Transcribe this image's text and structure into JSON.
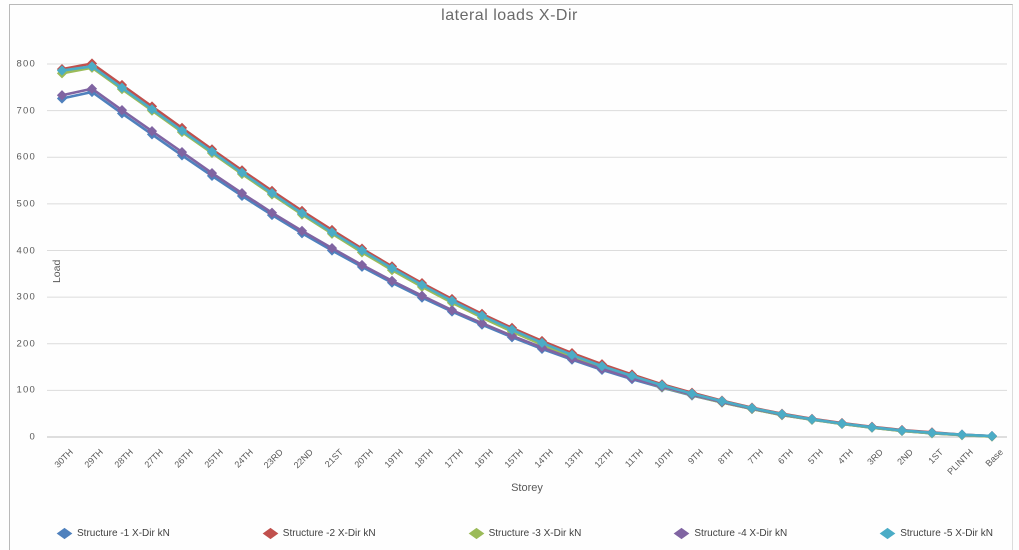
{
  "chart_data": {
    "type": "line",
    "title": "lateral loads X-Dir",
    "xlabel": "Storey",
    "ylabel": "Load",
    "grid": true,
    "legend_position": "bottom",
    "marker": "diamond",
    "x_categories": [
      "30TH",
      "29TH",
      "28TH",
      "27TH",
      "26TH",
      "25TH",
      "24TH",
      "23RD",
      "22ND",
      "21ST",
      "20TH",
      "19TH",
      "18TH",
      "17TH",
      "16TH",
      "15TH",
      "14TH",
      "13TH",
      "12TH",
      "11TH",
      "10TH",
      "9TH",
      "8TH",
      "7TH",
      "6TH",
      "5TH",
      "4TH",
      "3RD",
      "2ND",
      "1ST",
      "PLINTH",
      "Base"
    ],
    "y_axis": {
      "min": 0,
      "max": 800,
      "step": 100,
      "ticks": [
        0,
        100,
        200,
        300,
        400,
        500,
        600,
        700,
        800
      ]
    },
    "series": [
      {
        "name": "Structure -1 X-Dir kN",
        "color": "#4F81BD",
        "values": [
          726,
          740,
          694,
          649,
          604,
          560,
          517,
          476,
          437,
          400,
          365,
          331,
          299,
          269,
          241,
          214,
          189,
          166,
          144,
          124,
          106,
          89,
          74,
          60,
          47,
          37,
          28,
          20,
          13,
          8,
          4,
          1
        ]
      },
      {
        "name": "Structure -2 X-Dir kN",
        "color": "#C0504D",
        "values": [
          789,
          801,
          755,
          709,
          663,
          617,
          572,
          528,
          485,
          444,
          404,
          366,
          330,
          296,
          264,
          234,
          206,
          180,
          156,
          134,
          113,
          95,
          78,
          63,
          50,
          39,
          30,
          22,
          15,
          10,
          5,
          2
        ]
      },
      {
        "name": "Structure -3 X-Dir kN",
        "color": "#9BBB59",
        "values": [
          780,
          792,
          746,
          700,
          654,
          609,
          564,
          520,
          477,
          436,
          396,
          358,
          322,
          288,
          256,
          226,
          198,
          172,
          148,
          127,
          107,
          90,
          74,
          60,
          47,
          37,
          28,
          20,
          13,
          8,
          4,
          1
        ]
      },
      {
        "name": "Structure -4 X-Dir kN",
        "color": "#8064A2",
        "values": [
          733,
          747,
          701,
          656,
          611,
          566,
          523,
          481,
          442,
          405,
          369,
          335,
          303,
          272,
          244,
          217,
          192,
          168,
          146,
          126,
          108,
          91,
          75,
          61,
          48,
          38,
          29,
          21,
          14,
          9,
          5,
          2
        ]
      },
      {
        "name": "Structure -5 X-Dir kN",
        "color": "#4BACC6",
        "values": [
          786,
          795,
          749,
          703,
          657,
          612,
          567,
          523,
          480,
          439,
          400,
          362,
          326,
          292,
          260,
          230,
          202,
          176,
          152,
          131,
          111,
          93,
          77,
          62,
          49,
          38,
          29,
          21,
          14,
          9,
          5,
          2
        ]
      }
    ]
  }
}
